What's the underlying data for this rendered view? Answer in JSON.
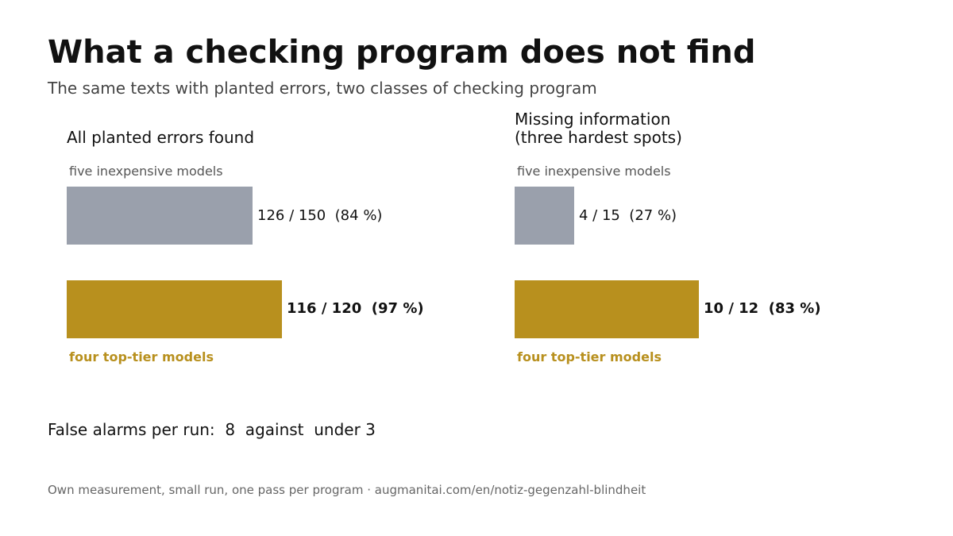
{
  "title": "What a checking program does not find",
  "subtitle": "The same texts with planted errors, two classes of checking program",
  "colors": {
    "budget": "#9aa0ac",
    "top": "#b8901e"
  },
  "chart_data": [
    {
      "type": "bar",
      "orientation": "horizontal",
      "title": "All planted errors found",
      "categories": [
        "five inexpensive models",
        "four top-tier models"
      ],
      "series": [
        {
          "values": [
            0.84,
            0.97
          ],
          "value_labels": [
            "126 / 150  (84 %)",
            "116 / 120  (97 %)"
          ]
        }
      ],
      "xlim": [
        0,
        1
      ],
      "grid": false
    },
    {
      "type": "bar",
      "orientation": "horizontal",
      "title": "Missing information\n(three hardest spots)",
      "categories": [
        "five inexpensive models",
        "four top-tier models"
      ],
      "series": [
        {
          "values": [
            0.27,
            0.83
          ],
          "value_labels": [
            "4 / 15  (27 %)",
            "10 / 12  (83 %)"
          ]
        }
      ],
      "xlim": [
        0,
        1
      ],
      "grid": false
    }
  ],
  "false_alarms": "False alarms per run:  8  against  under 3",
  "source": "Own measurement, small run, one pass per program · augmanitai.com/en/notiz-gegenzahl-blindheit"
}
